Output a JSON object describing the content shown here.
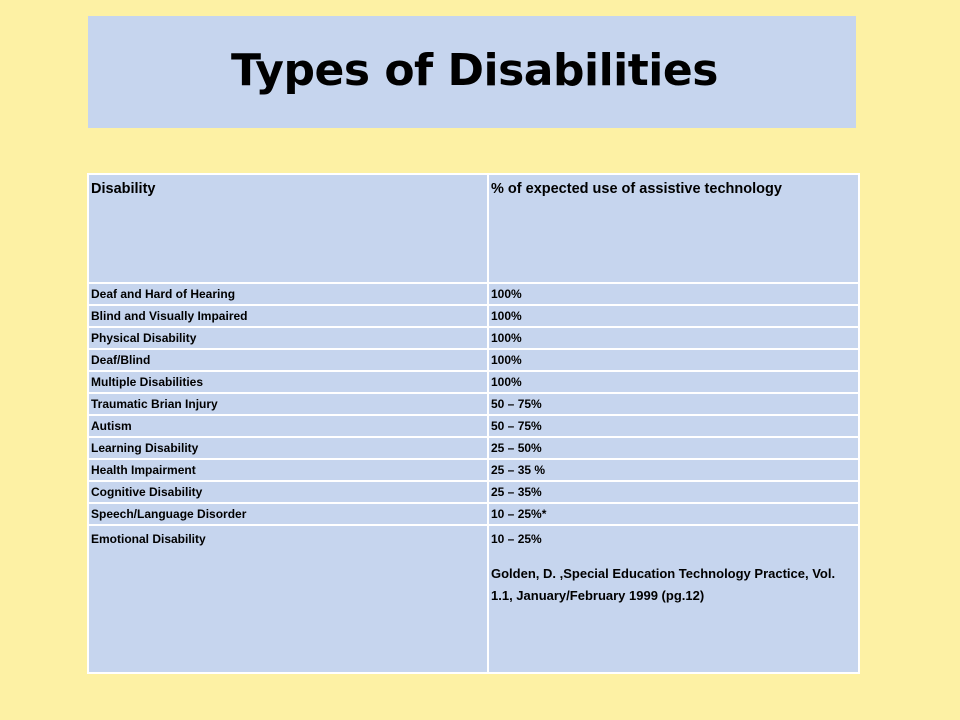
{
  "title": "Types of Disabilities",
  "table": {
    "headers": [
      "Disability",
      "% of expected use of assistive technology"
    ],
    "rows": [
      [
        "Deaf and Hard of Hearing",
        "100%"
      ],
      [
        "Blind and Visually Impaired",
        "100%"
      ],
      [
        "Physical Disability",
        "100%"
      ],
      [
        "Deaf/Blind",
        "100%"
      ],
      [
        "Multiple Disabilities",
        "100%"
      ],
      [
        "Traumatic Brian Injury",
        "50 – 75%"
      ],
      [
        "Autism",
        "50 – 75%"
      ],
      [
        "Learning Disability",
        "25 – 50%"
      ],
      [
        "Health Impairment",
        "25 – 35 %"
      ],
      [
        "Cognitive Disability",
        "25 – 35%"
      ],
      [
        "Speech/Language Disorder",
        "10 – 25%*"
      ],
      [
        "Emotional Disability",
        "10 – 25%"
      ]
    ],
    "citation": "Golden, D. ,Special Education Technology Practice, Vol. 1.1, January/February 1999 (pg.12)"
  },
  "colors": {
    "background": "#fdf1a4",
    "cell": "#c6d5ee",
    "grid": "#ffffff",
    "text": "#000000"
  }
}
